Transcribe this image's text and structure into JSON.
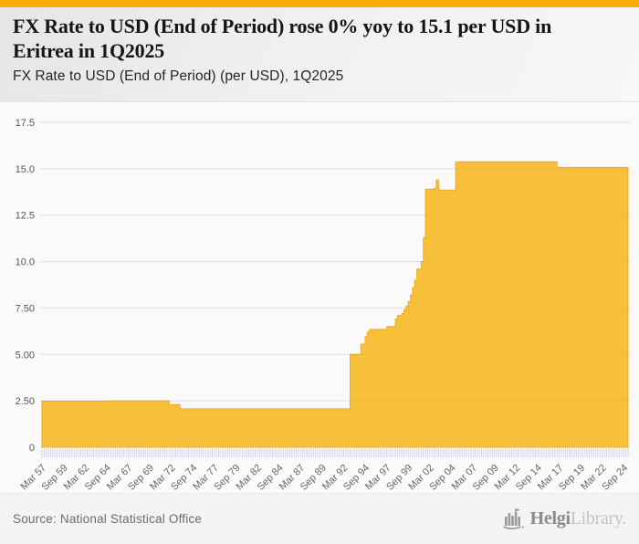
{
  "page": {
    "accent_color": "#F8AC0C",
    "background": "#f7f7f7"
  },
  "header": {
    "title": "FX Rate to USD (End of Period) rose 0% yoy to 15.1 per USD in Eritrea in 1Q2025",
    "subtitle": "FX Rate to USD (End of Period) (per USD), 1Q2025"
  },
  "footer": {
    "source": "Source: National Statistical Office",
    "logo_text_primary": "Helgi",
    "logo_text_secondary": "Library."
  },
  "chart_data": {
    "type": "area",
    "title": "FX Rate to USD (End of Period) (per USD), 1Q2025",
    "country": "Eritrea",
    "latest_period": "1Q2025",
    "latest_value": 15.1,
    "yoy_change_pct": 0,
    "x_start_year": 1957.0,
    "x_end_year": 2025.0,
    "x_quarters_total": 273,
    "x_tick_every_quarters": 10,
    "x_tick_labels": [
      "Mar 57",
      "Sep 59",
      "Mar 62",
      "Sep 64",
      "Mar 67",
      "Sep 69",
      "Mar 72",
      "Sep 74",
      "Mar 77",
      "Sep 79",
      "Mar 82",
      "Sep 84",
      "Mar 87",
      "Sep 89",
      "Mar 92",
      "Sep 94",
      "Mar 97",
      "Sep 99",
      "Mar 02",
      "Sep 04",
      "Mar 07",
      "Sep 09",
      "Mar 12",
      "Sep 14",
      "Mar 17",
      "Sep 19",
      "Mar 22",
      "Sep 24"
    ],
    "ylim": [
      0,
      17.5
    ],
    "y_ticks": [
      {
        "value": 0,
        "label": "0"
      },
      {
        "value": 2.5,
        "label": "2.50"
      },
      {
        "value": 5,
        "label": "5.00"
      },
      {
        "value": 7.5,
        "label": "7.50"
      },
      {
        "value": 10,
        "label": "10.0"
      },
      {
        "value": 12.5,
        "label": "12.5"
      },
      {
        "value": 15,
        "label": "15.0"
      },
      {
        "value": 17.5,
        "label": "17.5"
      }
    ],
    "grid": true,
    "legend": false,
    "area_color": "#F8BD34",
    "area_edge_color": "#F2A91C",
    "tick_mark_color": "#CCD5E9",
    "step_points": [
      [
        1957.0,
        2.48
      ],
      [
        1964.75,
        2.5
      ],
      [
        1971.75,
        2.3
      ],
      [
        1973.0,
        2.07
      ],
      [
        1992.75,
        5.0
      ],
      [
        1994.0,
        5.55
      ],
      [
        1994.5,
        5.95
      ],
      [
        1994.75,
        6.2
      ],
      [
        1995.0,
        6.35
      ],
      [
        1997.0,
        6.5
      ],
      [
        1998.0,
        6.9
      ],
      [
        1998.25,
        7.1
      ],
      [
        1998.75,
        7.2
      ],
      [
        1999.0,
        7.4
      ],
      [
        1999.25,
        7.6
      ],
      [
        1999.5,
        7.85
      ],
      [
        1999.75,
        8.2
      ],
      [
        2000.0,
        8.6
      ],
      [
        2000.25,
        9.0
      ],
      [
        2000.5,
        9.6
      ],
      [
        2001.0,
        10.0
      ],
      [
        2001.25,
        11.3
      ],
      [
        2001.5,
        13.9
      ],
      [
        2002.5,
        13.95
      ],
      [
        2002.75,
        14.4
      ],
      [
        2003.0,
        13.85
      ],
      [
        2005.0,
        15.375
      ],
      [
        2016.75,
        15.075
      ],
      [
        2025.0,
        15.075
      ]
    ]
  }
}
